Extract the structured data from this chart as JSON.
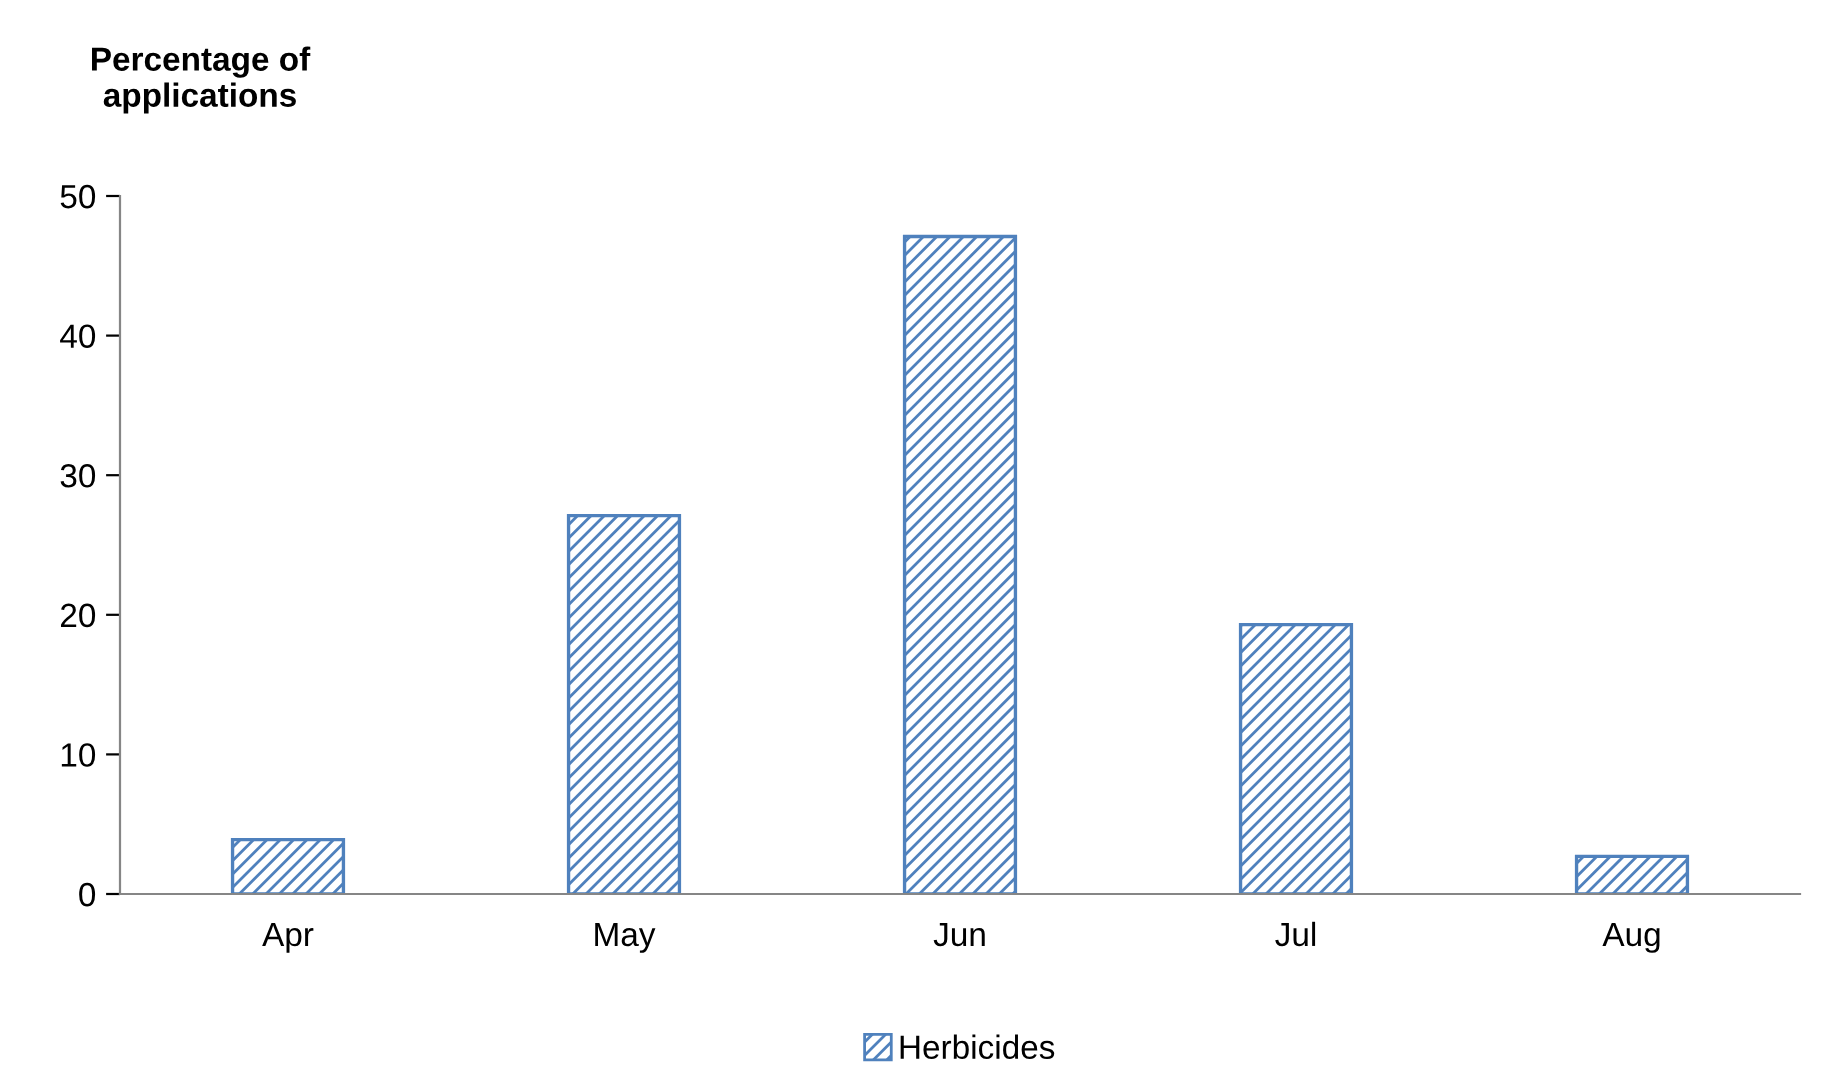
{
  "chart_data": {
    "type": "bar",
    "ylabel": "Percentage of\napplications",
    "categories": [
      "Apr",
      "May",
      "Jun",
      "Jul",
      "Aug"
    ],
    "series": [
      {
        "name": "Herbicides",
        "color": "#4f81bd",
        "values": [
          3.9,
          27.1,
          47.1,
          19.3,
          2.7
        ]
      }
    ],
    "ylim": [
      0,
      50
    ],
    "yticks": [
      0,
      10,
      20,
      30,
      40,
      50
    ],
    "grid": false,
    "legend": "bottom"
  }
}
